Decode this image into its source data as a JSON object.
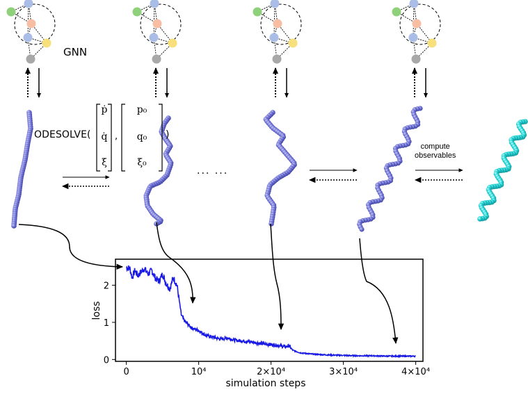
{
  "gnn_label": "GNN",
  "ode_label": "ODESOLVE(",
  "ode_comma": ",",
  "ode_close": ")",
  "vector_left": [
    "ṗ",
    "q̇",
    "ξ̇"
  ],
  "vector_right": [
    "p₀",
    "q₀",
    "ξ₀"
  ],
  "ellipsis": "··· ···",
  "compute_label": [
    "compute",
    "observables"
  ],
  "colors": {
    "protein": "#6b6fd0",
    "protein_final": "#22d4d4",
    "loss_curve": "#1a1ae6",
    "node_green": "#8fd17b",
    "node_blue": "#a9bde6",
    "node_orange": "#f8bea3",
    "node_yellow": "#f7df7c",
    "node_gray": "#a8a8a8"
  },
  "chart_data": {
    "type": "line",
    "xlabel": "simulation steps",
    "ylabel": "loss",
    "xlim": [
      -1500,
      41000
    ],
    "ylim": [
      -0.05,
      2.7
    ],
    "xticks": [
      {
        "value": 0,
        "label": "0"
      },
      {
        "value": 10000,
        "label": "10⁴"
      },
      {
        "value": 20000,
        "label": "2×10⁴"
      },
      {
        "value": 30000,
        "label": "3×10⁴"
      },
      {
        "value": 40000,
        "label": "4×10⁴"
      }
    ],
    "yticks": [
      {
        "value": 0,
        "label": "0"
      },
      {
        "value": 1,
        "label": "1"
      },
      {
        "value": 2,
        "label": "2"
      }
    ],
    "grid": false,
    "series": [
      {
        "x": [
          0,
          500,
          800,
          1200,
          1600,
          2000,
          2500,
          3000,
          3500,
          4000,
          4500,
          5000,
          5500,
          6000,
          6500,
          7000,
          7300,
          7600,
          8000,
          8500,
          9000,
          10000,
          11000,
          12000,
          13000,
          14000,
          15000,
          16000,
          17000,
          18000,
          19000,
          20000,
          21000,
          22000,
          22500,
          23000,
          24000,
          25000,
          26000,
          27000,
          28000,
          30000,
          32000,
          34000,
          36000,
          38000,
          40000
        ],
        "y": [
          2.48,
          2.45,
          2.2,
          2.4,
          2.25,
          2.35,
          2.45,
          2.3,
          2.4,
          2.2,
          2.1,
          2.3,
          2.05,
          1.9,
          2.2,
          2.0,
          1.6,
          1.2,
          1.05,
          0.95,
          0.85,
          0.78,
          0.65,
          0.6,
          0.55,
          0.58,
          0.52,
          0.5,
          0.48,
          0.45,
          0.42,
          0.4,
          0.38,
          0.34,
          0.37,
          0.25,
          0.18,
          0.16,
          0.14,
          0.13,
          0.12,
          0.11,
          0.1,
          0.1,
          0.09,
          0.09,
          0.09
        ]
      }
    ]
  }
}
